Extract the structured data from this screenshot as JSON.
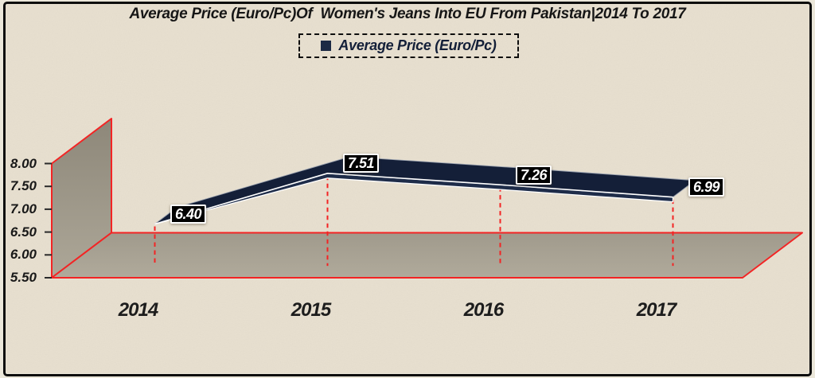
{
  "title": "Average Price (Euro/Pc)Of  Women's Jeans Into EU From Pakistan|2014 To 2017",
  "legend": {
    "label": "Average Price (Euro/Pc)"
  },
  "chart_data": {
    "type": "line",
    "style": "3d-ribbon",
    "title": "Average Price (Euro/Pc)Of  Women's Jeans Into EU From Pakistan|2014 To 2017",
    "categories": [
      "2014",
      "2015",
      "2016",
      "2017"
    ],
    "series": [
      {
        "name": "Average Price (Euro/Pc)",
        "values": [
          6.4,
          7.51,
          7.26,
          6.99
        ],
        "labels": [
          "6.40",
          "7.51",
          "7.26",
          "6.99"
        ]
      }
    ],
    "xlabel": "",
    "ylabel": "",
    "ylim": [
      5.5,
      8.0
    ],
    "ytick_step": 0.5,
    "yticks": [
      "5.50",
      "6.00",
      "6.50",
      "7.00",
      "7.50",
      "8.00"
    ],
    "grid": false,
    "drop_lines": true,
    "legend_position": "top-center"
  },
  "colors": {
    "background": "#e9e1d1",
    "frame": "#0d0d0d",
    "axis_red": "#f32424",
    "wall_top": "#8d8779",
    "wall_bottom": "#ada798",
    "floor_back": "#a09a8c",
    "floor_front": "#b0aa9b",
    "ribbon": "#141f38",
    "ribbon_face": "#1e2c49",
    "ribbon_edge_light": "#9aa2b0",
    "ribbon_edge_white": "#ffffff",
    "tick": "#2a2a2a",
    "label_bg": "#010101",
    "label_border": "#ffffff",
    "label_text": "#ffffff",
    "text": "#1c1c1c",
    "legend_marker": "#1c2a44"
  }
}
